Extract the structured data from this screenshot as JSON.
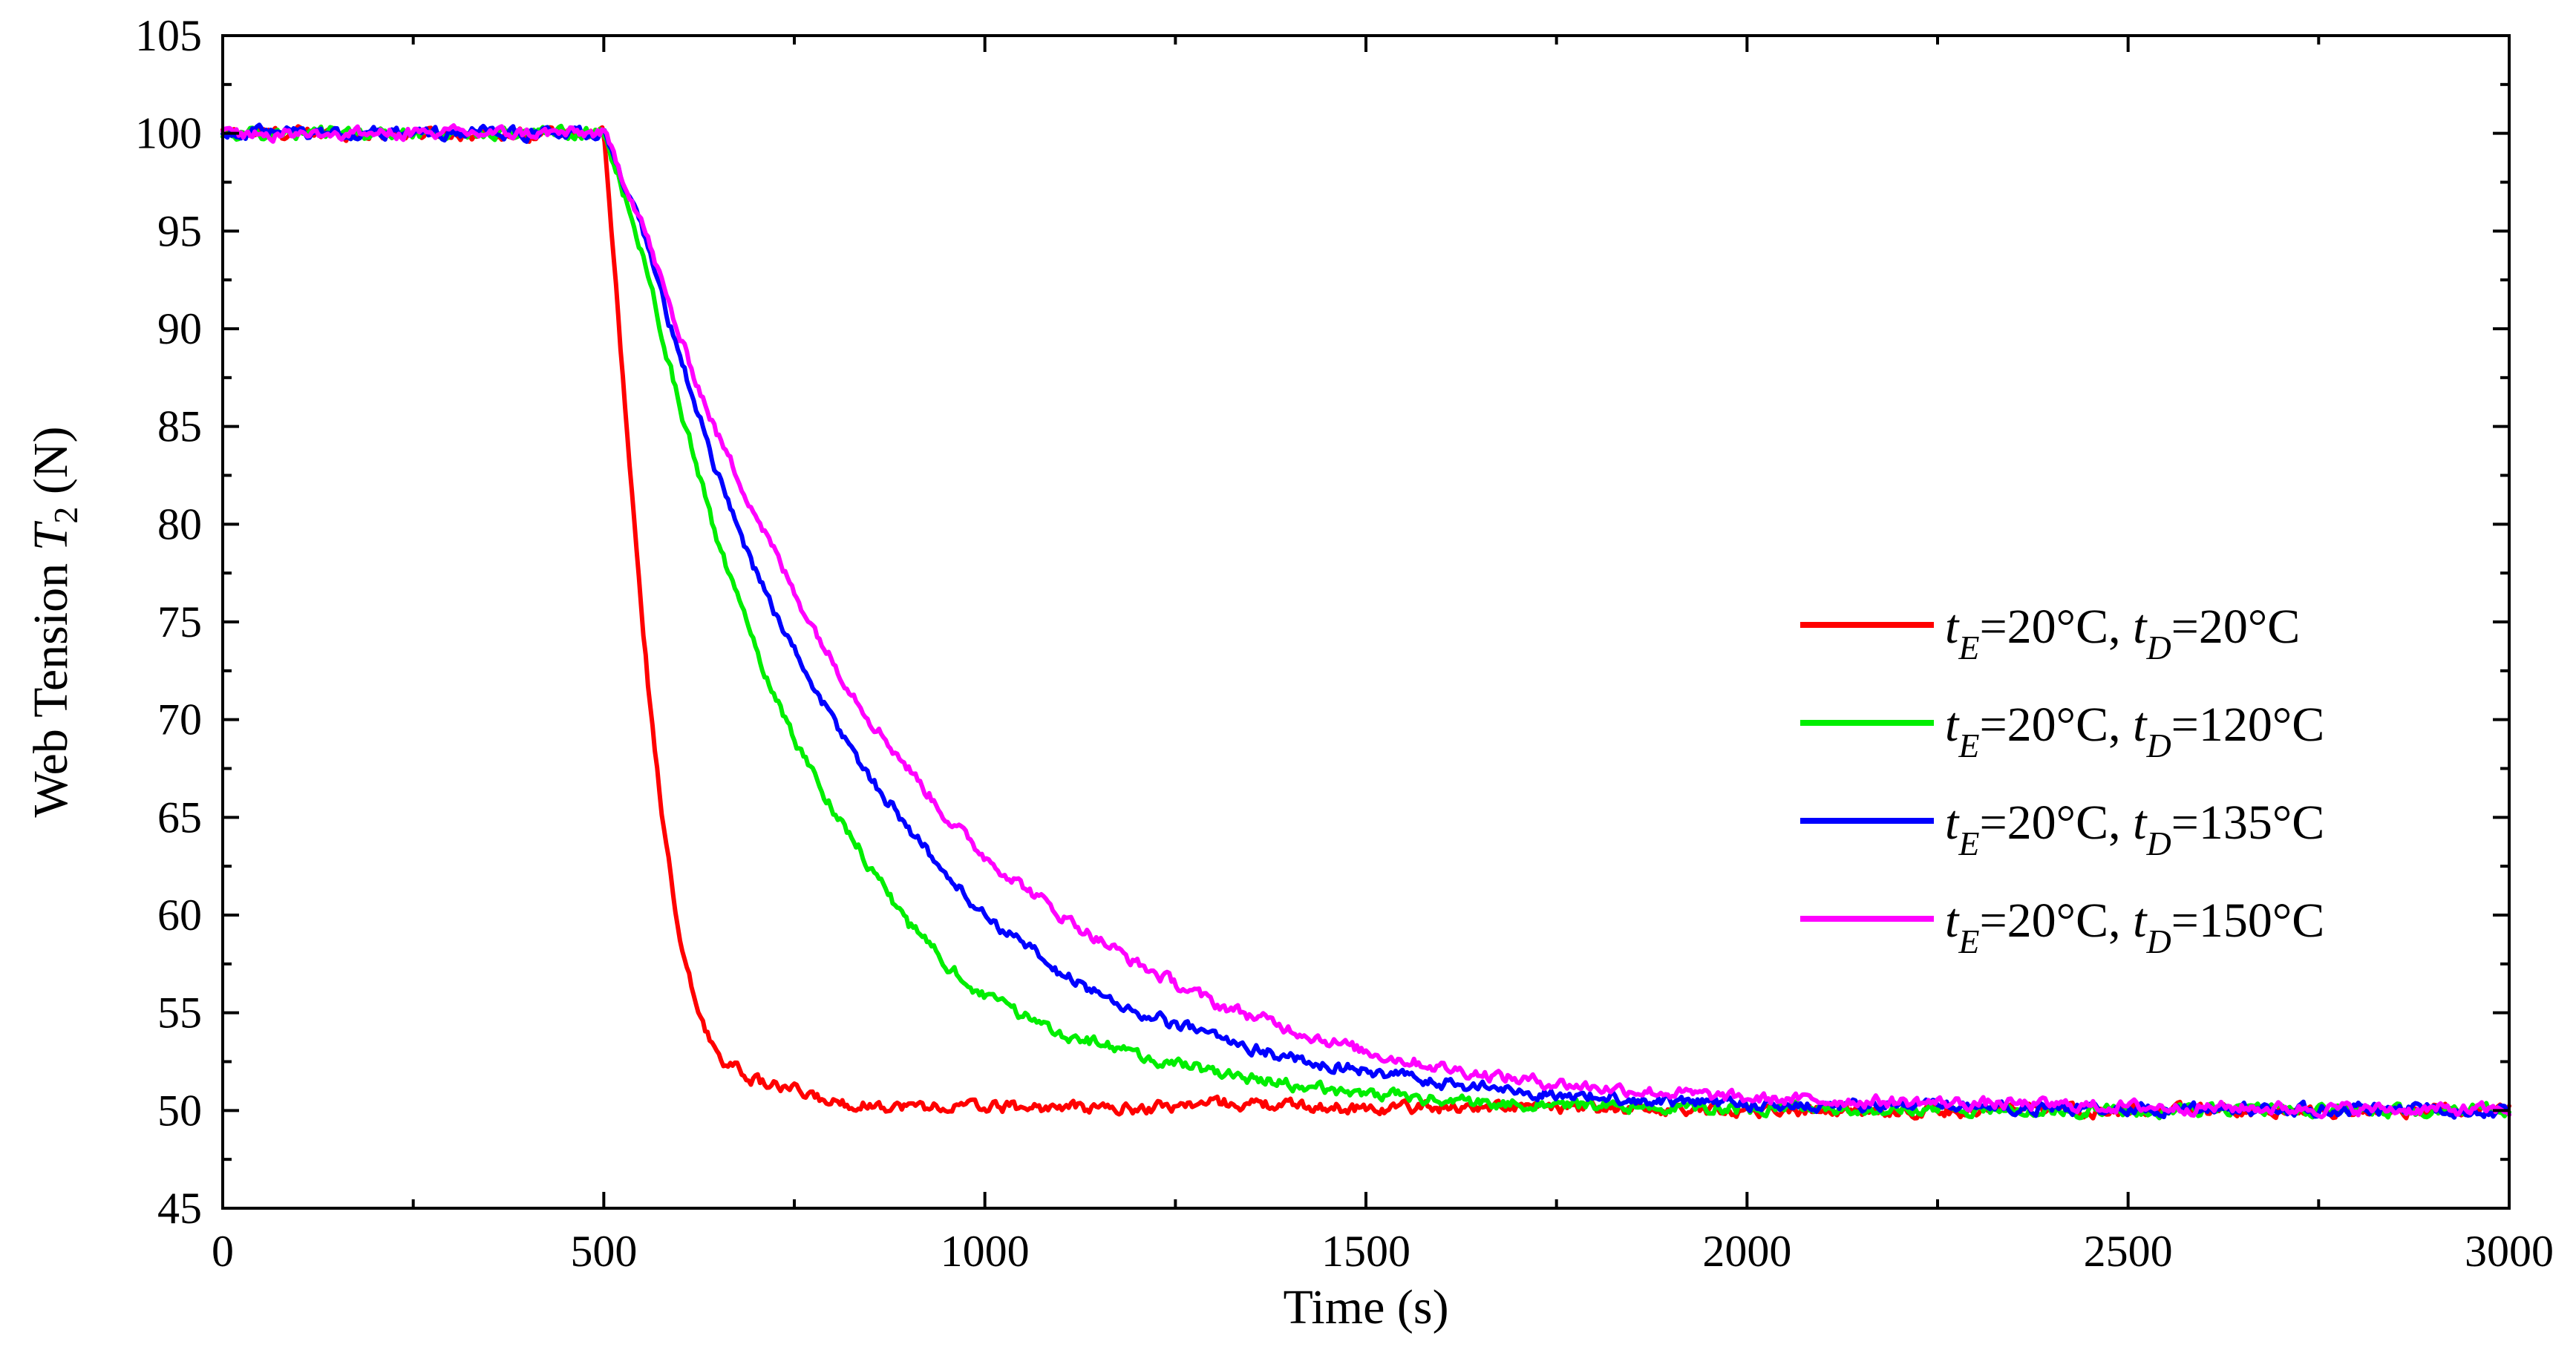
{
  "chart_data": {
    "type": "line",
    "title": "",
    "xlabel": "Time (s)",
    "ylabel": {
      "prefix": "Web Tension ",
      "var": "T",
      "sub": "2",
      "suffix": " (N)"
    },
    "xlim": [
      0,
      3000
    ],
    "ylim": [
      45,
      105
    ],
    "xticks": [
      0,
      500,
      1000,
      1500,
      2000,
      2500,
      3000
    ],
    "yticks": [
      45,
      50,
      55,
      60,
      65,
      70,
      75,
      80,
      85,
      90,
      95,
      100,
      105
    ],
    "grid": false,
    "legend_position": "center-right",
    "series": [
      {
        "name": "tE=20°C, tD=20°C",
        "label": {
          "t1": "t",
          "s1": "E",
          "m1": "=20°C, ",
          "t2": "t",
          "s2": "D",
          "m2": "=20°C"
        },
        "color": "#ff0000",
        "points": [
          [
            0,
            100
          ],
          [
            500,
            100
          ],
          [
            520,
            90
          ],
          [
            540,
            80
          ],
          [
            560,
            71
          ],
          [
            580,
            64
          ],
          [
            600,
            58.5
          ],
          [
            620,
            55.5
          ],
          [
            640,
            53.5
          ],
          [
            660,
            52.5
          ],
          [
            700,
            51.5
          ],
          [
            750,
            51
          ],
          [
            800,
            50.4
          ],
          [
            900,
            50.2
          ],
          [
            1000,
            50.2
          ],
          [
            1200,
            50.1
          ],
          [
            1300,
            50.4
          ],
          [
            1500,
            50.1
          ],
          [
            1600,
            50.2
          ],
          [
            2000,
            50
          ],
          [
            2500,
            50
          ],
          [
            3000,
            50
          ]
        ]
      },
      {
        "name": "tE=20°C, tD=120°C",
        "label": {
          "t1": "t",
          "s1": "E",
          "m1": "=20°C, ",
          "t2": "t",
          "s2": "D",
          "m2": "=120°C"
        },
        "color": "#00ee00",
        "points": [
          [
            0,
            100
          ],
          [
            500,
            100
          ],
          [
            550,
            94
          ],
          [
            600,
            86
          ],
          [
            650,
            79
          ],
          [
            700,
            73.5
          ],
          [
            750,
            69
          ],
          [
            800,
            65.5
          ],
          [
            850,
            62.5
          ],
          [
            900,
            59.5
          ],
          [
            950,
            57.5
          ],
          [
            1000,
            55.8
          ],
          [
            1100,
            54
          ],
          [
            1200,
            52.8
          ],
          [
            1300,
            52
          ],
          [
            1400,
            51.3
          ],
          [
            1500,
            50.9
          ],
          [
            1600,
            50.5
          ],
          [
            1800,
            50.2
          ],
          [
            2000,
            50.1
          ],
          [
            2500,
            50
          ],
          [
            3000,
            50
          ]
        ]
      },
      {
        "name": "tE=20°C, tD=135°C",
        "label": {
          "t1": "t",
          "s1": "E",
          "m1": "=20°C, ",
          "t2": "t",
          "s2": "D",
          "m2": "=135°C"
        },
        "color": "#0000ff",
        "points": [
          [
            0,
            100
          ],
          [
            500,
            100
          ],
          [
            550,
            95
          ],
          [
            600,
            88.5
          ],
          [
            650,
            82.5
          ],
          [
            700,
            77.5
          ],
          [
            750,
            73.5
          ],
          [
            800,
            70
          ],
          [
            850,
            67
          ],
          [
            900,
            64.5
          ],
          [
            950,
            62
          ],
          [
            1000,
            60
          ],
          [
            1100,
            57
          ],
          [
            1200,
            55
          ],
          [
            1300,
            53.8
          ],
          [
            1400,
            52.7
          ],
          [
            1500,
            52
          ],
          [
            1600,
            51.4
          ],
          [
            1700,
            51
          ],
          [
            1800,
            50.7
          ],
          [
            2000,
            50.3
          ],
          [
            2500,
            50.1
          ],
          [
            3000,
            50
          ]
        ]
      },
      {
        "name": "tE=20°C, tD=150°C",
        "label": {
          "t1": "t",
          "s1": "E",
          "m1": "=20°C, ",
          "t2": "t",
          "s2": "D",
          "m2": "=150°C"
        },
        "color": "#ff00ff",
        "points": [
          [
            0,
            100
          ],
          [
            500,
            100
          ],
          [
            550,
            95.5
          ],
          [
            600,
            89.5
          ],
          [
            650,
            84.5
          ],
          [
            700,
            80.5
          ],
          [
            750,
            76.5
          ],
          [
            800,
            73
          ],
          [
            850,
            70
          ],
          [
            900,
            67.5
          ],
          [
            950,
            65
          ],
          [
            1000,
            63
          ],
          [
            1100,
            60
          ],
          [
            1200,
            57.5
          ],
          [
            1300,
            55.5
          ],
          [
            1400,
            54.2
          ],
          [
            1500,
            53
          ],
          [
            1600,
            52.2
          ],
          [
            1700,
            51.6
          ],
          [
            1800,
            51.2
          ],
          [
            2000,
            50.6
          ],
          [
            2500,
            50.2
          ],
          [
            3000,
            50
          ]
        ]
      }
    ]
  }
}
